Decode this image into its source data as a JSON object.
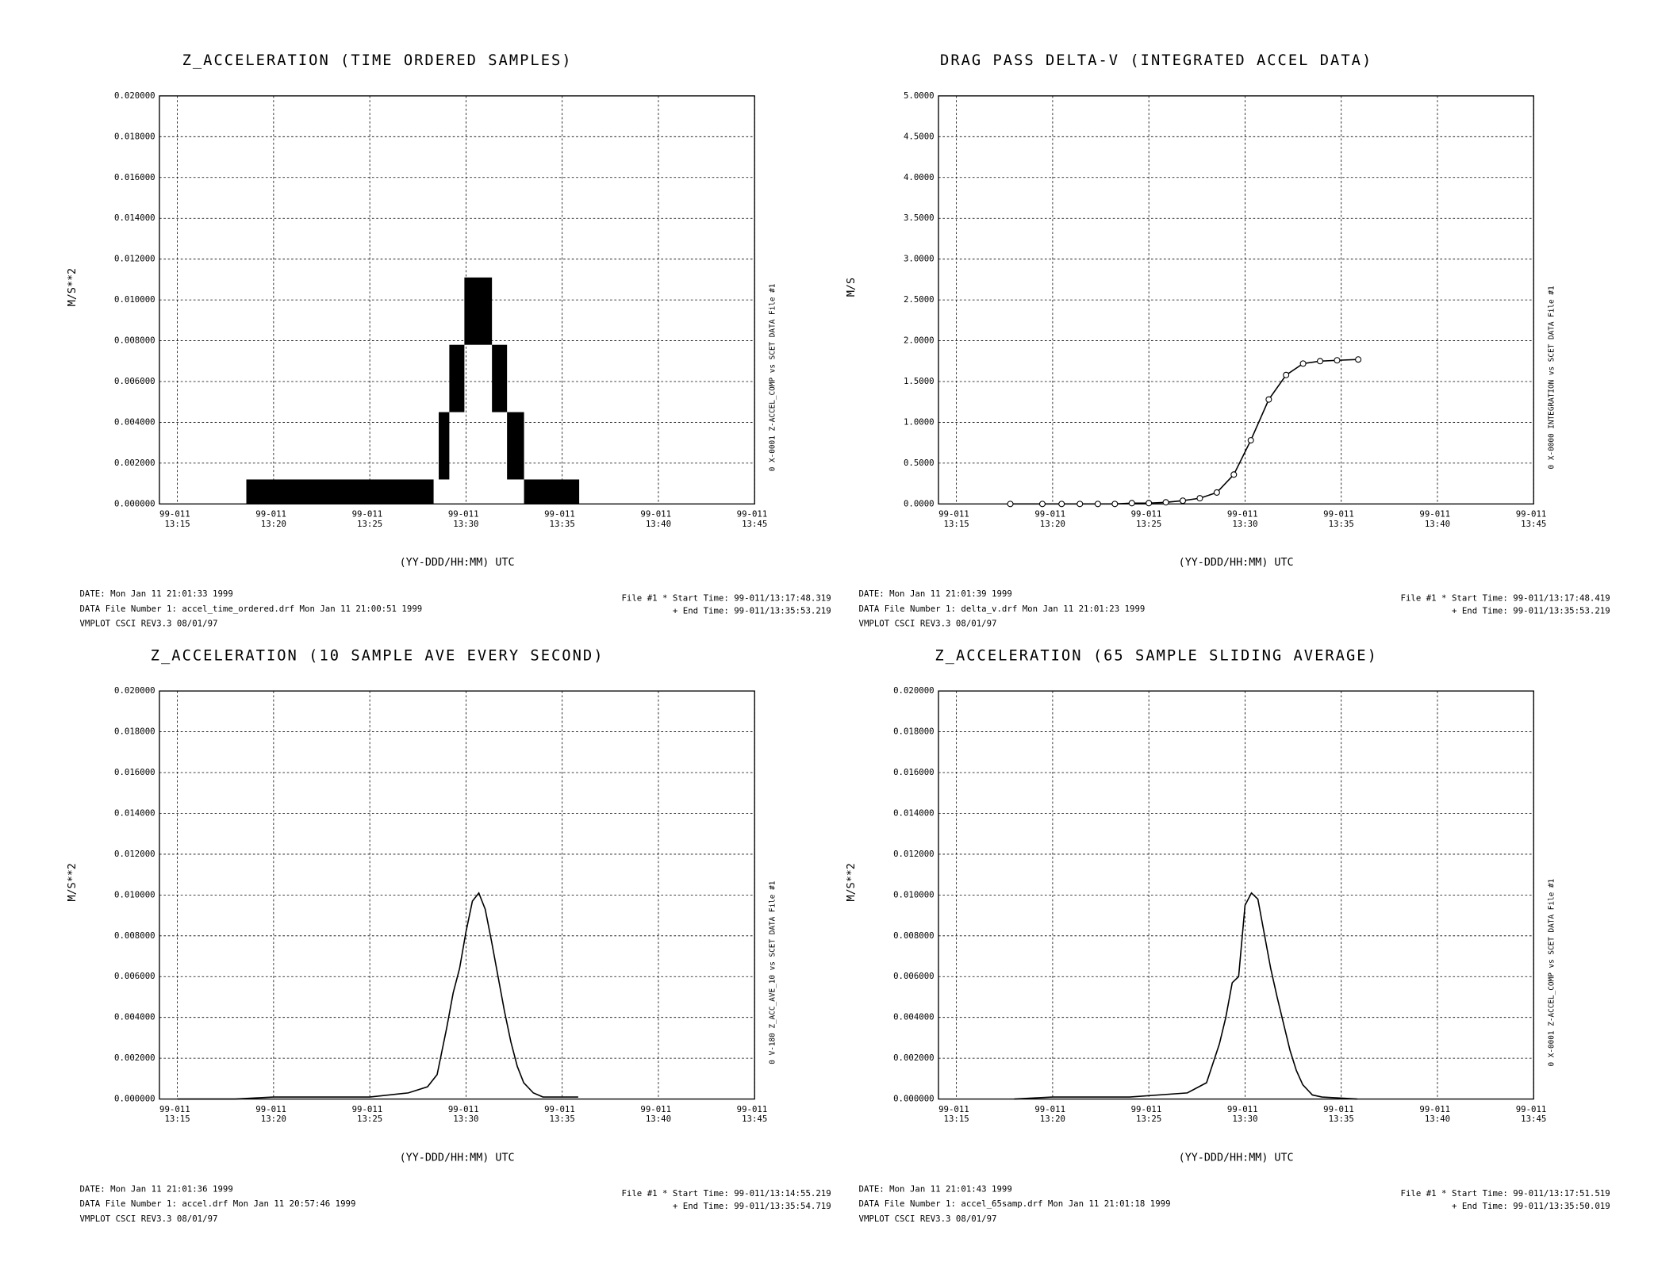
{
  "chart_data": [
    {
      "type": "range-bar",
      "title": "Z_ACCELERATION (TIME ORDERED SAMPLES)",
      "y_label": "M/S**2",
      "x_label": "(YY-DDD/HH:MM) UTC",
      "side_label": "0  X-0001 Z-ACCEL_COMP vs SCET  DATA File #1",
      "footer": [
        "DATE: Mon Jan 11 21:01:33 1999",
        "DATA File Number 1: accel_time_ordered.drf   Mon Jan 11 21:00:51 1999",
        "VMPLOT CSCI REV3.3 08/01/97"
      ],
      "times": [
        "File #1 * Start Time: 99-011/13:17:48.319",
        "+  End Time: 99-011/13:35:53.219"
      ],
      "x_start": [
        "13:18:35",
        "13:28:35",
        "13:29:08",
        "13:29:55",
        "13:31:21",
        "13:32:08",
        "13:33:01"
      ],
      "x_end": [
        "13:28:19",
        "13:29:08",
        "13:29:55",
        "13:31:21",
        "13:32:08",
        "13:33:01",
        "13:35:53"
      ],
      "low": [
        0,
        0.0012,
        0.0045,
        0.0078,
        0.0045,
        0.0012,
        0
      ],
      "high": [
        0.0012,
        0.0045,
        0.0078,
        0.0111,
        0.0078,
        0.0045,
        0.0012
      ],
      "color": "#000000",
      "xlim": [
        "13:14:04",
        "13:45:00"
      ],
      "xticks": [
        {
          "value": "13:15",
          "label": "99-011 13:15"
        },
        {
          "value": "13:20",
          "label": "99-011 13:20"
        },
        {
          "value": "13:25",
          "label": "99-011 13:25"
        },
        {
          "value": "13:30",
          "label": "99-011 13:30"
        },
        {
          "value": "13:35",
          "label": "99-011 13:35"
        },
        {
          "value": "13:40",
          "label": "99-011 13:40"
        },
        {
          "value": "13:45",
          "label": "99-011 13:45"
        }
      ],
      "ylim": [
        0,
        0.02
      ],
      "yticks": [
        {
          "value": 0,
          "label": "0.000000"
        },
        {
          "value": 0.002,
          "label": "0.002000"
        },
        {
          "value": 0.004,
          "label": "0.004000"
        },
        {
          "value": 0.006,
          "label": "0.006000"
        },
        {
          "value": 0.008,
          "label": "0.008000"
        },
        {
          "value": 0.01,
          "label": "0.010000"
        },
        {
          "value": 0.012,
          "label": "0.012000"
        },
        {
          "value": 0.014,
          "label": "0.014000"
        },
        {
          "value": 0.016,
          "label": "0.016000"
        },
        {
          "value": 0.018,
          "label": "0.018000"
        },
        {
          "value": 0.02,
          "label": "0.020000"
        }
      ],
      "grid": true
    },
    {
      "type": "line",
      "title": "DRAG PASS DELTA-V (INTEGRATED ACCEL DATA)",
      "y_label": "M/S",
      "x_label": "(YY-DDD/HH:MM) UTC",
      "side_label": "0  X-0000 INTEGRATION vs SCET  DATA File #1",
      "footer": [
        "DATE: Mon Jan 11 21:01:39 1999",
        "DATA File Number 1: delta_v.drf   Mon Jan 11 21:01:23 1999",
        "VMPLOT CSCI REV3.3 08/01/97"
      ],
      "times": [
        "File #1 * Start Time: 99-011/13:17:48.419",
        "+  End Time: 99-011/13:35:53.219"
      ],
      "x": [
        "13:17:48",
        "13:19:28",
        "13:20:28",
        "13:21:25",
        "13:22:21",
        "13:23:14",
        "13:24:07",
        "13:25:00",
        "13:25:53",
        "13:26:46",
        "13:27:39",
        "13:28:32",
        "13:29:25",
        "13:30:18",
        "13:31:14",
        "13:32:08",
        "13:33:01",
        "13:33:54",
        "13:34:47",
        "13:35:53"
      ],
      "values": [
        0,
        0,
        0,
        0,
        0,
        0,
        0.01,
        0.01,
        0.02,
        0.04,
        0.07,
        0.14,
        0.36,
        0.78,
        1.28,
        1.58,
        1.72,
        1.75,
        1.76,
        1.77
      ],
      "color": "#000000",
      "markers": true,
      "xlim": [
        "13:14:04",
        "13:45:00"
      ],
      "xticks": [
        {
          "value": "13:15",
          "label": "99-011 13:15"
        },
        {
          "value": "13:20",
          "label": "99-011 13:20"
        },
        {
          "value": "13:25",
          "label": "99-011 13:25"
        },
        {
          "value": "13:30",
          "label": "99-011 13:30"
        },
        {
          "value": "13:35",
          "label": "99-011 13:35"
        },
        {
          "value": "13:40",
          "label": "99-011 13:40"
        },
        {
          "value": "13:45",
          "label": "99-011 13:45"
        }
      ],
      "ylim": [
        0,
        5
      ],
      "yticks": [
        {
          "value": 0,
          "label": "0.0000"
        },
        {
          "value": 0.5,
          "label": "0.5000"
        },
        {
          "value": 1,
          "label": "1.0000"
        },
        {
          "value": 1.5,
          "label": "1.5000"
        },
        {
          "value": 2,
          "label": "2.0000"
        },
        {
          "value": 2.5,
          "label": "2.5000"
        },
        {
          "value": 3,
          "label": "3.0000"
        },
        {
          "value": 3.5,
          "label": "3.5000"
        },
        {
          "value": 4,
          "label": "4.0000"
        },
        {
          "value": 4.5,
          "label": "4.5000"
        },
        {
          "value": 5,
          "label": "5.0000"
        }
      ],
      "grid": true
    },
    {
      "type": "line",
      "title": "Z_ACCELERATION (10 SAMPLE AVE EVERY SECOND)",
      "y_label": "M/S**2",
      "x_label": "(YY-DDD/HH:MM) UTC",
      "side_label": "0  V-180 Z_ACC_AVE_10 vs SCET  DATA File #1",
      "footer": [
        "DATE: Mon Jan 11 21:01:36 1999",
        "DATA File Number 1: accel.drf   Mon Jan 11 20:57:46 1999",
        "VMPLOT CSCI REV3.3 08/01/97"
      ],
      "times": [
        "File #1 * Start Time: 99-011/13:14:55.219",
        "+  End Time: 99-011/13:35:54.719"
      ],
      "x": [
        "13:15:00",
        "13:16:00",
        "13:17:00",
        "13:18:00",
        "13:20:00",
        "13:22:00",
        "13:25:00",
        "13:27:00",
        "13:28:00",
        "13:28:30",
        "13:29:00",
        "13:29:20",
        "13:29:40",
        "13:30:00",
        "13:30:20",
        "13:30:40",
        "13:31:00",
        "13:31:20",
        "13:31:40",
        "13:32:00",
        "13:32:20",
        "13:32:40",
        "13:33:00",
        "13:33:30",
        "13:34:00",
        "13:35:00",
        "13:35:50"
      ],
      "values": [
        0,
        0,
        0,
        0,
        0.0001,
        0.0001,
        0.0001,
        0.0003,
        0.0006,
        0.0012,
        0.0035,
        0.0052,
        0.0064,
        0.0082,
        0.0097,
        0.0101,
        0.0093,
        0.0077,
        0.006,
        0.0043,
        0.0028,
        0.0016,
        0.0008,
        0.0003,
        0.0001,
        0.0001,
        0.0001
      ],
      "color": "#000000",
      "markers": false,
      "xlim": [
        "13:14:04",
        "13:45:00"
      ],
      "xticks": [
        {
          "value": "13:15",
          "label": "99-011 13:15"
        },
        {
          "value": "13:20",
          "label": "99-011 13:20"
        },
        {
          "value": "13:25",
          "label": "99-011 13:25"
        },
        {
          "value": "13:30",
          "label": "99-011 13:30"
        },
        {
          "value": "13:35",
          "label": "99-011 13:35"
        },
        {
          "value": "13:40",
          "label": "99-011 13:40"
        },
        {
          "value": "13:45",
          "label": "99-011 13:45"
        }
      ],
      "ylim": [
        0,
        0.02
      ],
      "yticks": [
        {
          "value": 0,
          "label": "0.000000"
        },
        {
          "value": 0.002,
          "label": "0.002000"
        },
        {
          "value": 0.004,
          "label": "0.004000"
        },
        {
          "value": 0.006,
          "label": "0.006000"
        },
        {
          "value": 0.008,
          "label": "0.008000"
        },
        {
          "value": 0.01,
          "label": "0.010000"
        },
        {
          "value": 0.012,
          "label": "0.012000"
        },
        {
          "value": 0.014,
          "label": "0.014000"
        },
        {
          "value": 0.016,
          "label": "0.016000"
        },
        {
          "value": 0.018,
          "label": "0.018000"
        },
        {
          "value": 0.02,
          "label": "0.020000"
        }
      ],
      "grid": true
    },
    {
      "type": "line",
      "title": "Z_ACCELERATION (65 SAMPLE SLIDING AVERAGE)",
      "y_label": "M/S**2",
      "x_label": "(YY-DDD/HH:MM) UTC",
      "side_label": "0  X-0001 Z-ACCEL_COMP vs SCET  DATA File #1",
      "footer": [
        "DATE: Mon Jan 11 21:01:43 1999",
        "DATA File Number 1: accel_65samp.drf   Mon Jan 11 21:01:18 1999",
        "VMPLOT CSCI REV3.3 08/01/97"
      ],
      "times": [
        "File #1 * Start Time: 99-011/13:17:51.519",
        "+  End Time: 99-011/13:35:50.019"
      ],
      "x": [
        "13:18:00",
        "13:20:00",
        "13:24:00",
        "13:27:00",
        "13:28:00",
        "13:28:40",
        "13:29:00",
        "13:29:20",
        "13:29:40",
        "13:30:00",
        "13:30:20",
        "13:30:40",
        "13:31:00",
        "13:31:20",
        "13:31:40",
        "13:32:00",
        "13:32:20",
        "13:32:40",
        "13:33:00",
        "13:33:30",
        "13:34:00",
        "13:35:50"
      ],
      "values": [
        0,
        0.0001,
        0.0001,
        0.0003,
        0.0008,
        0.0027,
        0.004,
        0.0057,
        0.006,
        0.0095,
        0.0101,
        0.0098,
        0.0081,
        0.0064,
        0.005,
        0.0037,
        0.0024,
        0.0014,
        0.0007,
        0.0002,
        0.0001,
        0
      ],
      "color": "#000000",
      "markers": false,
      "xlim": [
        "13:14:04",
        "13:45:00"
      ],
      "xticks": [
        {
          "value": "13:15",
          "label": "99-011 13:15"
        },
        {
          "value": "13:20",
          "label": "99-011 13:20"
        },
        {
          "value": "13:25",
          "label": "99-011 13:25"
        },
        {
          "value": "13:30",
          "label": "99-011 13:30"
        },
        {
          "value": "13:35",
          "label": "99-011 13:35"
        },
        {
          "value": "13:40",
          "label": "99-011 13:40"
        },
        {
          "value": "13:45",
          "label": "99-011 13:45"
        }
      ],
      "ylim": [
        0,
        0.02
      ],
      "yticks": [
        {
          "value": 0,
          "label": "0.000000"
        },
        {
          "value": 0.002,
          "label": "0.002000"
        },
        {
          "value": 0.004,
          "label": "0.004000"
        },
        {
          "value": 0.006,
          "label": "0.006000"
        },
        {
          "value": 0.008,
          "label": "0.008000"
        },
        {
          "value": 0.01,
          "label": "0.010000"
        },
        {
          "value": 0.012,
          "label": "0.012000"
        },
        {
          "value": 0.014,
          "label": "0.014000"
        },
        {
          "value": 0.016,
          "label": "0.016000"
        },
        {
          "value": 0.018,
          "label": "0.018000"
        },
        {
          "value": 0.02,
          "label": "0.020000"
        }
      ],
      "grid": true
    }
  ]
}
